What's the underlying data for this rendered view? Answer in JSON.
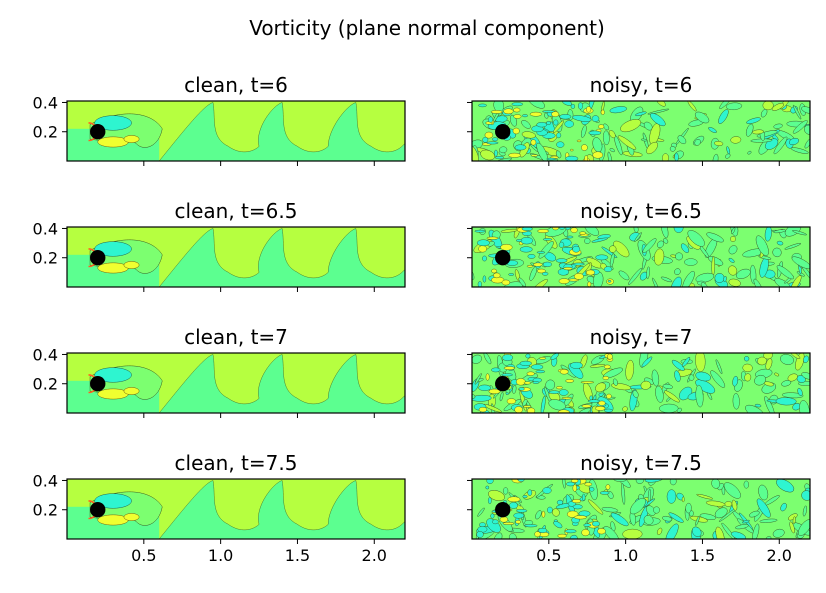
{
  "figure": {
    "title": "Vorticity (plane normal component)"
  },
  "chart_data": [
    {
      "type": "heatmap",
      "title": "clean, t=6",
      "xlim": [
        0,
        2.2
      ],
      "ylim": [
        0,
        0.41
      ],
      "xticks": [
        "0.5",
        "1.0",
        "1.5",
        "2.0"
      ],
      "yticks": [
        "0.2",
        "0.4"
      ],
      "show_xticklabels": false,
      "show_yticklabels": true,
      "cylinder": {
        "x": 0.2,
        "y": 0.2,
        "r": 0.05
      }
    },
    {
      "type": "heatmap",
      "title": "noisy, t=6",
      "xlim": [
        0,
        2.2
      ],
      "ylim": [
        0,
        0.41
      ],
      "xticks": [
        "0.5",
        "1.0",
        "1.5",
        "2.0"
      ],
      "yticks": [
        "0.2",
        "0.4"
      ],
      "show_xticklabels": false,
      "show_yticklabels": false,
      "cylinder": {
        "x": 0.2,
        "y": 0.2,
        "r": 0.05
      }
    },
    {
      "type": "heatmap",
      "title": "clean, t=6.5",
      "xlim": [
        0,
        2.2
      ],
      "ylim": [
        0,
        0.41
      ],
      "xticks": [
        "0.5",
        "1.0",
        "1.5",
        "2.0"
      ],
      "yticks": [
        "0.2",
        "0.4"
      ],
      "show_xticklabels": false,
      "show_yticklabels": true,
      "cylinder": {
        "x": 0.2,
        "y": 0.2,
        "r": 0.05
      }
    },
    {
      "type": "heatmap",
      "title": "noisy, t=6.5",
      "xlim": [
        0,
        2.2
      ],
      "ylim": [
        0,
        0.41
      ],
      "xticks": [
        "0.5",
        "1.0",
        "1.5",
        "2.0"
      ],
      "yticks": [
        "0.2",
        "0.4"
      ],
      "show_xticklabels": false,
      "show_yticklabels": false,
      "cylinder": {
        "x": 0.2,
        "y": 0.2,
        "r": 0.05
      }
    },
    {
      "type": "heatmap",
      "title": "clean, t=7",
      "xlim": [
        0,
        2.2
      ],
      "ylim": [
        0,
        0.41
      ],
      "xticks": [
        "0.5",
        "1.0",
        "1.5",
        "2.0"
      ],
      "yticks": [
        "0.2",
        "0.4"
      ],
      "show_xticklabels": false,
      "show_yticklabels": true,
      "cylinder": {
        "x": 0.2,
        "y": 0.2,
        "r": 0.05
      }
    },
    {
      "type": "heatmap",
      "title": "noisy, t=7",
      "xlim": [
        0,
        2.2
      ],
      "ylim": [
        0,
        0.41
      ],
      "xticks": [
        "0.5",
        "1.0",
        "1.5",
        "2.0"
      ],
      "yticks": [
        "0.2",
        "0.4"
      ],
      "show_xticklabels": false,
      "show_yticklabels": false,
      "cylinder": {
        "x": 0.2,
        "y": 0.2,
        "r": 0.05
      }
    },
    {
      "type": "heatmap",
      "title": "clean, t=7.5",
      "xlim": [
        0,
        2.2
      ],
      "ylim": [
        0,
        0.41
      ],
      "xticks": [
        "0.5",
        "1.0",
        "1.5",
        "2.0"
      ],
      "yticks": [
        "0.2",
        "0.4"
      ],
      "show_xticklabels": true,
      "show_yticklabels": true,
      "cylinder": {
        "x": 0.2,
        "y": 0.2,
        "r": 0.05
      }
    },
    {
      "type": "heatmap",
      "title": "noisy, t=7.5",
      "xlim": [
        0,
        2.2
      ],
      "ylim": [
        0,
        0.41
      ],
      "xticks": [
        "0.5",
        "1.0",
        "1.5",
        "2.0"
      ],
      "yticks": [
        "0.2",
        "0.4"
      ],
      "show_xticklabels": true,
      "show_yticklabels": false,
      "cylinder": {
        "x": 0.2,
        "y": 0.2,
        "r": 0.05
      }
    }
  ],
  "colors": {
    "upper_field": "#b6ff40",
    "lower_field": "#5cff90",
    "mid_field": "#7cff70",
    "cyan_core": "#2ef5d0",
    "yellow_core": "#f0ff30",
    "red_edge": "#ff6020",
    "cylinder": "#000000"
  }
}
